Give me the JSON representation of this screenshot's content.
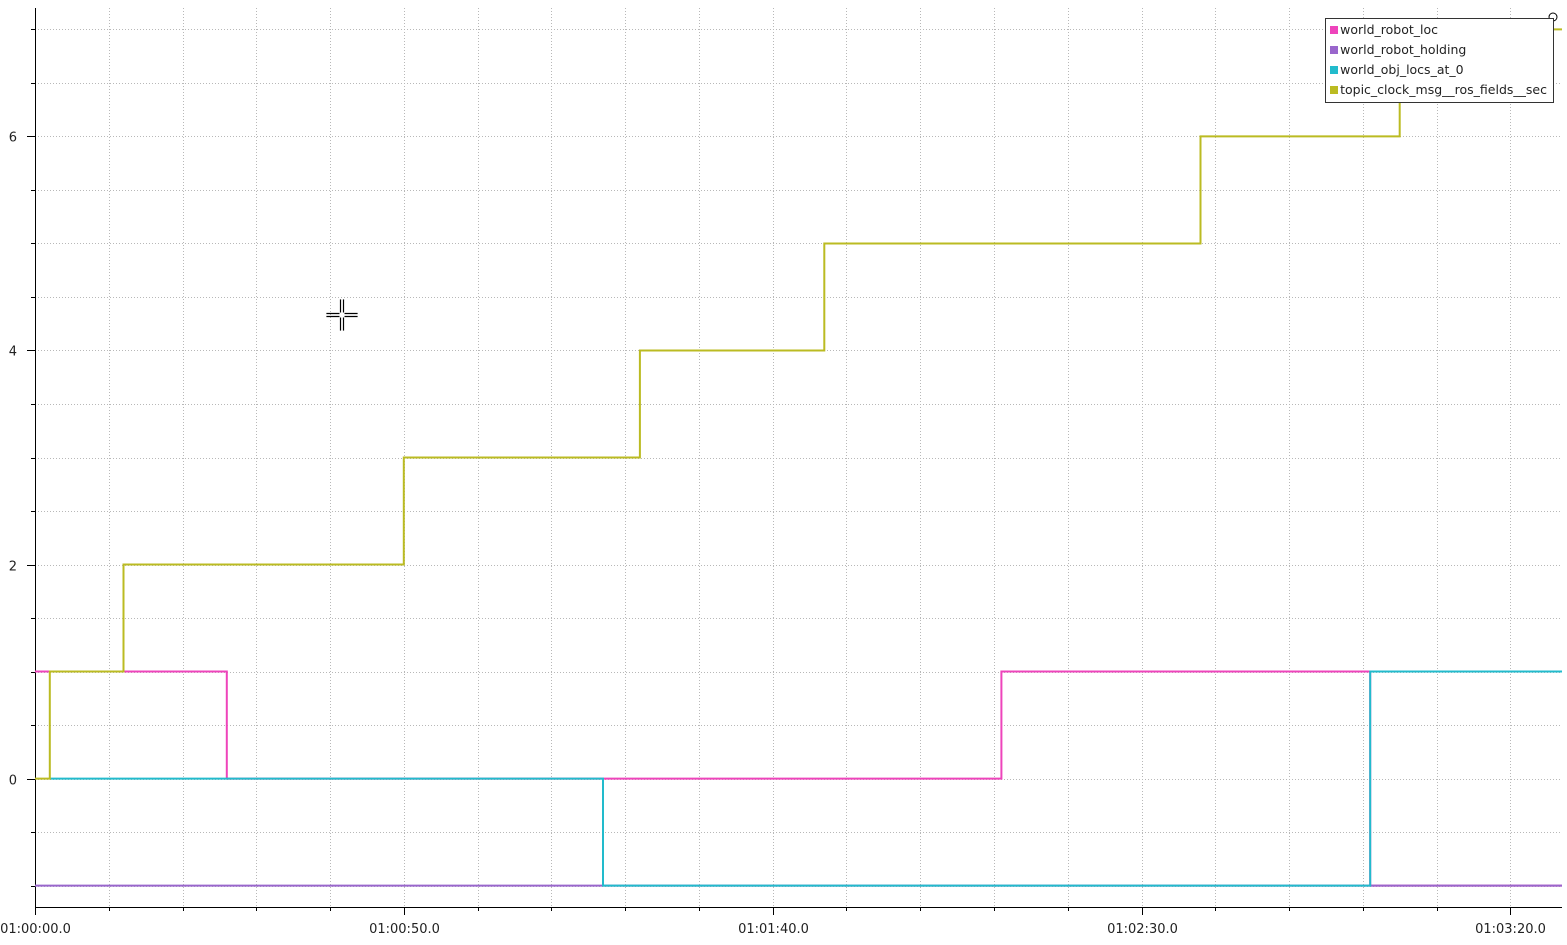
{
  "chart_data": {
    "type": "line",
    "step": true,
    "title": "",
    "xlabel": "",
    "ylabel": "",
    "x_unit": "seconds since 01:00:00.0 (axis shows clock time)",
    "xlim": [
      0,
      207
    ],
    "ylim": [
      -1.2,
      7.2
    ],
    "x_tick_labels": [
      {
        "value": 0,
        "label": "01:00:00.0"
      },
      {
        "value": 50,
        "label": "01:00:50.0"
      },
      {
        "value": 100,
        "label": "01:01:40.0"
      },
      {
        "value": 150,
        "label": "01:02:30.0"
      },
      {
        "value": 200,
        "label": "01:03:20.0"
      }
    ],
    "y_tick_labels": [
      {
        "value": 0,
        "label": "0"
      },
      {
        "value": 2,
        "label": "2"
      },
      {
        "value": 4,
        "label": "4"
      },
      {
        "value": 6,
        "label": "6"
      }
    ],
    "grid": true,
    "legend_position": "top-right",
    "series": [
      {
        "name": "world_robot_loc",
        "color": "#ee44bb",
        "x": [
          0,
          26,
          26,
          131,
          131,
          181,
          181,
          207
        ],
        "y": [
          1,
          1,
          0,
          0,
          1,
          1,
          -1,
          -1
        ]
      },
      {
        "name": "world_robot_holding",
        "color": "#9966cc",
        "x": [
          0,
          207
        ],
        "y": [
          -1,
          -1
        ]
      },
      {
        "name": "world_obj_locs_at_0",
        "color": "#22bbcc",
        "x": [
          2,
          77,
          77,
          181,
          181,
          207
        ],
        "y": [
          0,
          0,
          -1,
          -1,
          1,
          1
        ]
      },
      {
        "name": "topic_clock_msg__ros_fields__sec",
        "color": "#bbbb22",
        "x": [
          0,
          2,
          2,
          12,
          12,
          50,
          50,
          82,
          82,
          107,
          107,
          158,
          158,
          185,
          185,
          207
        ],
        "y": [
          0,
          0,
          1,
          1,
          2,
          2,
          3,
          3,
          4,
          4,
          5,
          5,
          6,
          6,
          7,
          7
        ]
      }
    ]
  }
}
